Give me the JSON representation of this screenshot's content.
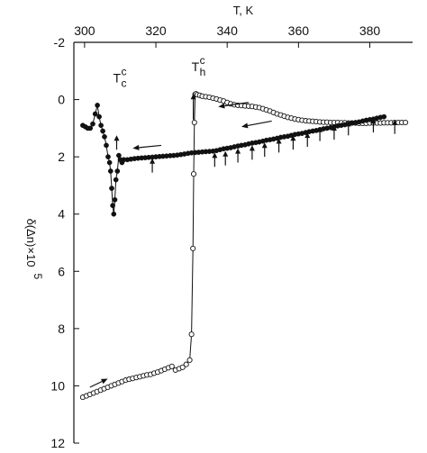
{
  "chart_data": {
    "type": "scatter",
    "title": "",
    "xlabel": "T, K",
    "ylabel": "δ(Δn)×10",
    "ylabel_superscript": "5",
    "xlim": [
      297,
      392
    ],
    "ylim": [
      -2,
      12
    ],
    "y_inverted": true,
    "x_axis_position": "top",
    "grid": false,
    "x_ticks": [
      300,
      320,
      340,
      360,
      380
    ],
    "x_tick_labels": [
      "300",
      "320",
      "340",
      "360",
      "380"
    ],
    "y_ticks": [
      -2,
      0,
      2,
      4,
      6,
      8,
      10,
      12
    ],
    "y_tick_labels": [
      "-2",
      "0",
      "2",
      "4",
      "6",
      "8",
      "10",
      "12"
    ],
    "series": [
      {
        "marker": "open-circle",
        "connected": true,
        "x": [
          299.5,
          300.5,
          301.5,
          302.5,
          303.5,
          304.5,
          305.5,
          306.5,
          307.5,
          308.5,
          309.5,
          310.5,
          311.5,
          312.5,
          313.5,
          314.5,
          315.5,
          316.5,
          317.5,
          318.5,
          319.5,
          320.5,
          321.5,
          322.5,
          323.5,
          324.5,
          325.5,
          326.5,
          327.5,
          328.5,
          329.5,
          330.0,
          330.4,
          330.6,
          330.8,
          331.0,
          331.2,
          331.6,
          332.3,
          333.0,
          334.0,
          335.0,
          336.0,
          337.0,
          338.0,
          339.0,
          340.0,
          341.0,
          342.0,
          343.0,
          344.0,
          345.0,
          346.0,
          347.0,
          348.0,
          349.0,
          350.0,
          351.0,
          352.0,
          353.0,
          354.0,
          355.0,
          356.0,
          357.0,
          358.0,
          359.0,
          360.0,
          361.0,
          362.0,
          363.0,
          364.0,
          365.0,
          366.0,
          367.0,
          368.0,
          369.0,
          370.0,
          371.0,
          372.0,
          373.0,
          374.0,
          375.0,
          376.0,
          377.0,
          378.0,
          379.0,
          380.0,
          381.0,
          382.0,
          383.0,
          384.0,
          385.0,
          386.0,
          387.0,
          388.0,
          389.0,
          390.0
        ],
        "y": [
          10.4,
          10.35,
          10.3,
          10.25,
          10.2,
          10.15,
          10.1,
          10.05,
          10.0,
          9.95,
          9.9,
          9.85,
          9.8,
          9.77,
          9.74,
          9.71,
          9.68,
          9.65,
          9.62,
          9.6,
          9.56,
          9.52,
          9.47,
          9.42,
          9.37,
          9.32,
          9.45,
          9.4,
          9.35,
          9.25,
          9.1,
          8.2,
          5.2,
          2.6,
          0.8,
          -0.18,
          -0.2,
          -0.17,
          -0.15,
          -0.12,
          -0.1,
          -0.08,
          -0.05,
          -0.02,
          0.02,
          0.05,
          0.1,
          0.15,
          0.18,
          0.2,
          0.21,
          0.22,
          0.23,
          0.24,
          0.26,
          0.28,
          0.32,
          0.36,
          0.4,
          0.45,
          0.5,
          0.54,
          0.58,
          0.62,
          0.65,
          0.68,
          0.7,
          0.72,
          0.74,
          0.75,
          0.76,
          0.77,
          0.78,
          0.79,
          0.79,
          0.8,
          0.8,
          0.8,
          0.81,
          0.81,
          0.82,
          0.82,
          0.82,
          0.83,
          0.83,
          0.83,
          0.82,
          0.82,
          0.82,
          0.82,
          0.81,
          0.81,
          0.81,
          0.8,
          0.8,
          0.8,
          0.8
        ]
      },
      {
        "marker": "filled-circle",
        "connected": true,
        "x": [
          299.5,
          300.2,
          300.9,
          301.6,
          302.3,
          303.0,
          303.6,
          304.1,
          304.6,
          305.1,
          305.6,
          306.1,
          306.6,
          307.0,
          307.3,
          307.6,
          307.9,
          308.2,
          308.5,
          308.8,
          309.2,
          309.6,
          310.0,
          310.5,
          311.0,
          312.0,
          313.0,
          314.0,
          315.0,
          316.0,
          317.0,
          318.0,
          319.0,
          320.0,
          321.0,
          322.0,
          323.0,
          324.0,
          325.0,
          326.0,
          327.0,
          328.0,
          329.0,
          330.0,
          331.0,
          332.0,
          333.0,
          334.0,
          335.0,
          336.0,
          337.0,
          338.0,
          339.0,
          340.0,
          341.0,
          342.0,
          343.0,
          344.0,
          345.0,
          346.0,
          347.0,
          348.0,
          349.0,
          350.0,
          351.0,
          352.0,
          353.0,
          354.0,
          355.0,
          356.0,
          357.0,
          358.0,
          359.0,
          360.0,
          361.0,
          362.0,
          363.0,
          364.0,
          365.0,
          366.0,
          367.0,
          368.0,
          369.0,
          370.0,
          371.0,
          372.0,
          373.0,
          374.0,
          375.0,
          376.0,
          377.0,
          378.0,
          379.0,
          380.0,
          381.0,
          382.0,
          383.0,
          384.0
        ],
        "y": [
          0.9,
          0.95,
          1.0,
          1.0,
          0.85,
          0.5,
          0.2,
          0.6,
          0.9,
          1.1,
          1.3,
          1.6,
          2.0,
          2.2,
          2.5,
          3.1,
          3.7,
          4.0,
          3.5,
          2.8,
          2.5,
          1.95,
          2.1,
          2.2,
          2.1,
          2.1,
          2.08,
          2.06,
          2.05,
          2.04,
          2.03,
          2.02,
          2.01,
          2.0,
          1.99,
          1.98,
          1.97,
          1.96,
          1.95,
          1.94,
          1.92,
          1.9,
          1.88,
          1.86,
          1.85,
          1.84,
          1.83,
          1.82,
          1.81,
          1.8,
          1.78,
          1.75,
          1.72,
          1.7,
          1.68,
          1.65,
          1.62,
          1.6,
          1.58,
          1.55,
          1.52,
          1.5,
          1.48,
          1.45,
          1.42,
          1.4,
          1.38,
          1.35,
          1.32,
          1.3,
          1.28,
          1.25,
          1.22,
          1.2,
          1.18,
          1.15,
          1.12,
          1.1,
          1.08,
          1.05,
          1.02,
          1.0,
          0.98,
          0.95,
          0.92,
          0.9,
          0.88,
          0.85,
          0.82,
          0.8,
          0.78,
          0.75,
          0.72,
          0.7,
          0.68,
          0.65,
          0.62,
          0.6
        ]
      }
    ],
    "annotations": [
      {
        "text": "T",
        "superscript": "c",
        "subscript": "c",
        "x": 309.0,
        "y": -0.6
      },
      {
        "text": "T",
        "superscript": "c",
        "subscript": "h",
        "x": 331.0,
        "y": -1.0
      }
    ],
    "marker_arrows": {
      "up": [
        {
          "x": 309.0,
          "y_tail": 1.75,
          "y_head": 1.25
        },
        {
          "x": 319.0,
          "y_tail": 2.55,
          "y_head": 2.05
        },
        {
          "x": 330.5,
          "y_tail": 0.7,
          "y_head": -0.2
        },
        {
          "x": 336.5,
          "y_tail": 2.35,
          "y_head": 1.85
        },
        {
          "x": 339.5,
          "y_tail": 2.3,
          "y_head": 1.8
        },
        {
          "x": 343.0,
          "y_tail": 2.2,
          "y_head": 1.7
        },
        {
          "x": 347.0,
          "y_tail": 2.1,
          "y_head": 1.6
        },
        {
          "x": 350.5,
          "y_tail": 2.0,
          "y_head": 1.5
        },
        {
          "x": 354.5,
          "y_tail": 1.85,
          "y_head": 1.35
        },
        {
          "x": 358.5,
          "y_tail": 1.75,
          "y_head": 1.25
        },
        {
          "x": 362.5,
          "y_tail": 1.65,
          "y_head": 1.15
        },
        {
          "x": 366.0,
          "y_tail": 1.45,
          "y_head": 0.95
        },
        {
          "x": 370.0,
          "y_tail": 1.4,
          "y_head": 0.9
        },
        {
          "x": 374.0,
          "y_tail": 1.25,
          "y_head": 0.75
        },
        {
          "x": 381.0,
          "y_tail": 1.15,
          "y_head": 0.65
        },
        {
          "x": 387.0,
          "y_tail": 1.2,
          "y_head": 0.7
        }
      ],
      "direction": [
        {
          "x1": 301.5,
          "y1": 10.05,
          "x2": 306.5,
          "y2": 9.75
        },
        {
          "x1": 346.0,
          "y1": 0.1,
          "x2": 337.5,
          "y2": 0.25
        },
        {
          "x1": 352.5,
          "y1": 0.75,
          "x2": 344.0,
          "y2": 0.95
        },
        {
          "x1": 321.5,
          "y1": 1.6,
          "x2": 313.5,
          "y2": 1.7
        }
      ]
    }
  }
}
